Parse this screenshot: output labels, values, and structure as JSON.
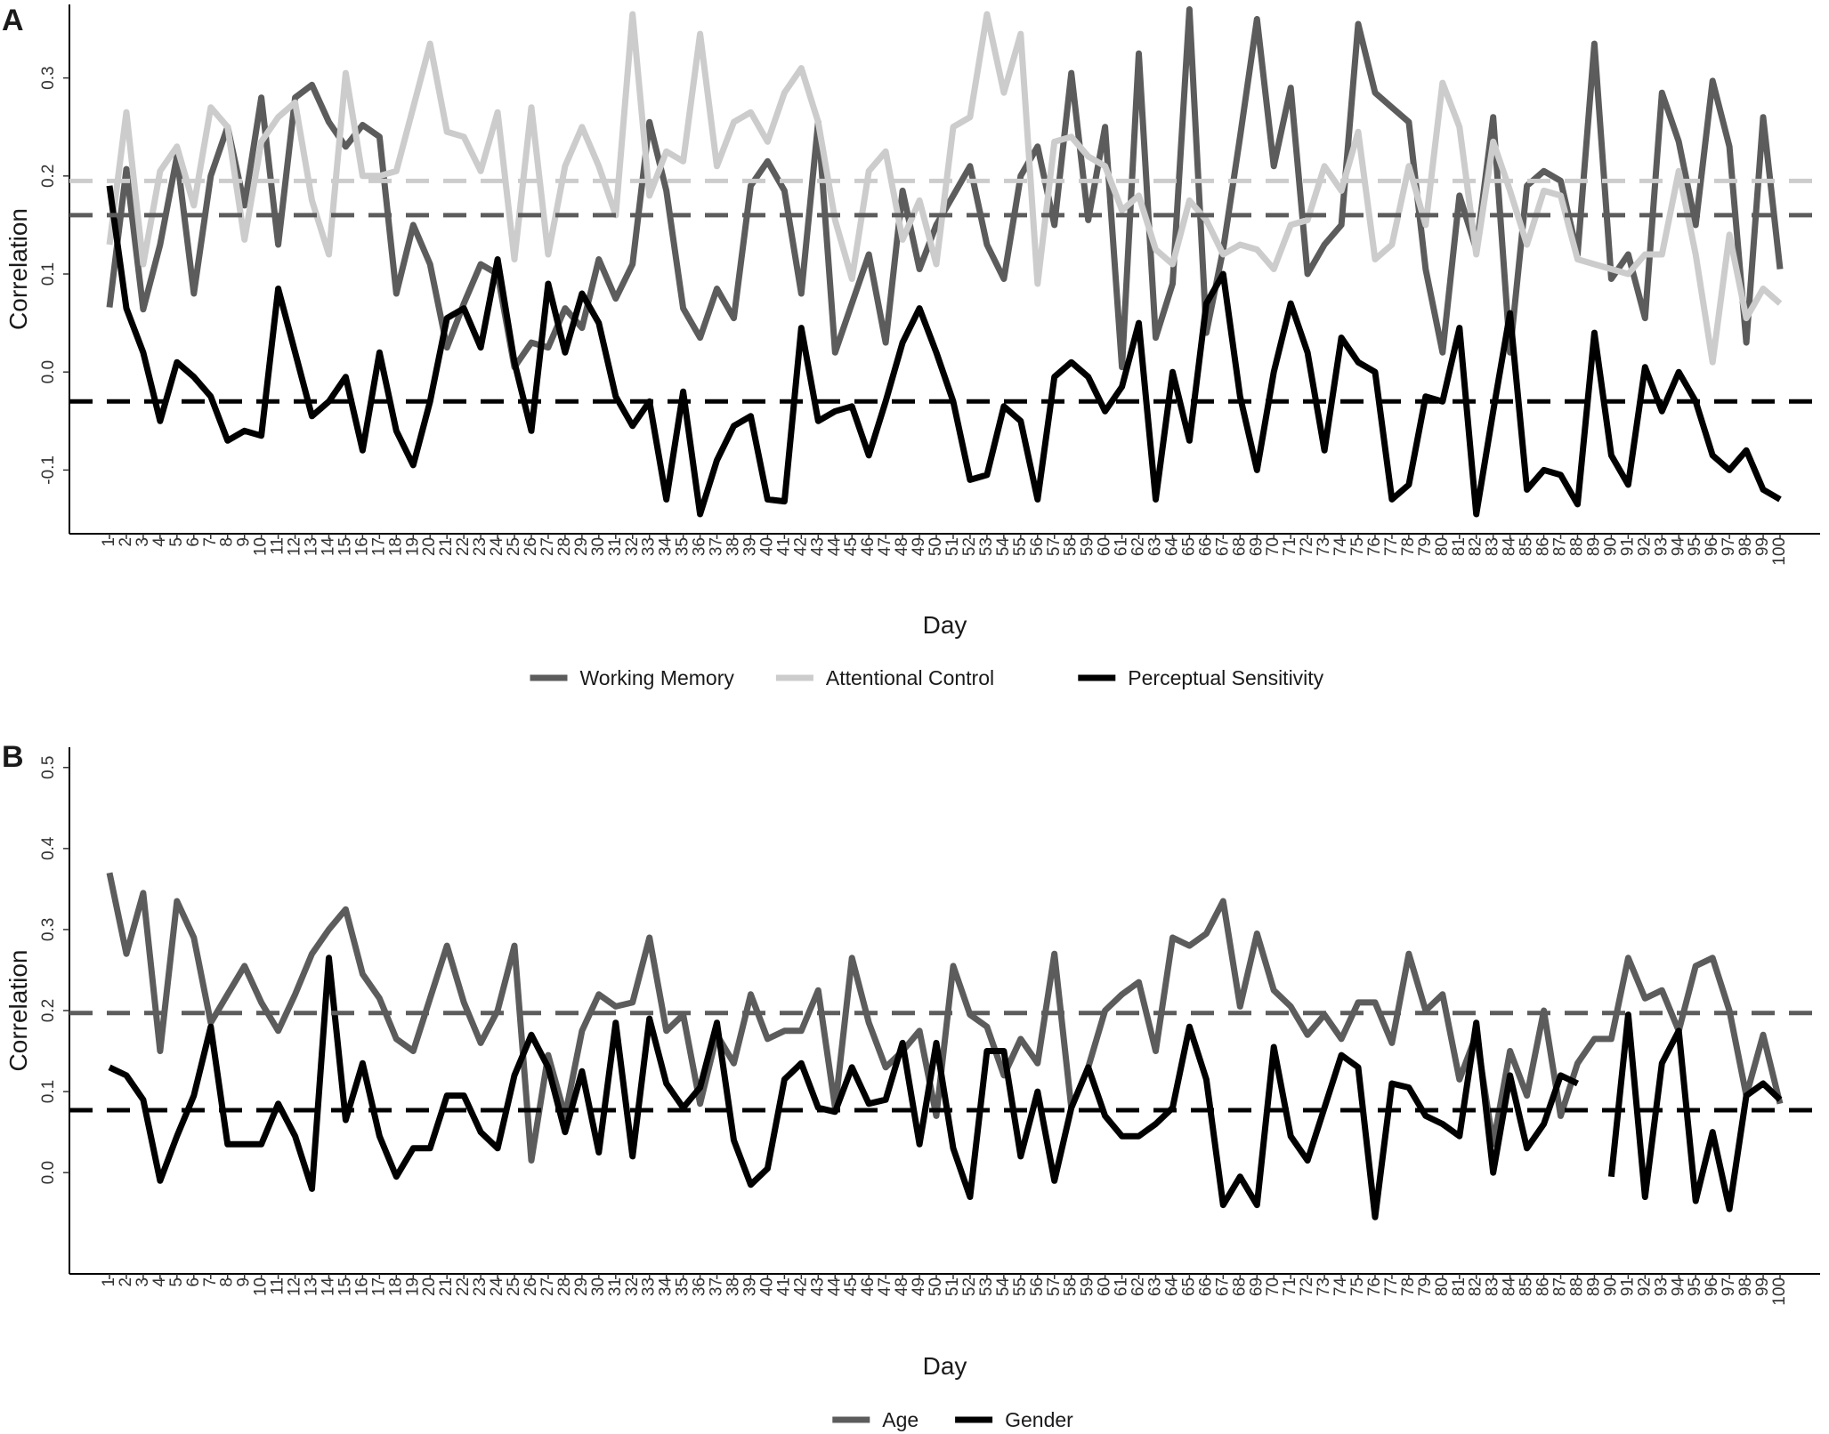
{
  "chart_data": [
    {
      "type": "line",
      "panel_label": "A",
      "xlabel": "Day",
      "ylabel": "Correlation",
      "x": [
        1,
        2,
        3,
        4,
        5,
        6,
        7,
        8,
        9,
        10,
        11,
        12,
        13,
        14,
        15,
        16,
        17,
        18,
        19,
        20,
        21,
        22,
        23,
        24,
        25,
        26,
        27,
        28,
        29,
        30,
        31,
        32,
        33,
        34,
        35,
        36,
        37,
        38,
        39,
        40,
        41,
        42,
        43,
        44,
        45,
        46,
        47,
        48,
        49,
        50,
        51,
        52,
        53,
        54,
        55,
        56,
        57,
        58,
        59,
        60,
        61,
        62,
        63,
        64,
        65,
        66,
        67,
        68,
        69,
        70,
        71,
        72,
        73,
        74,
        75,
        76,
        77,
        78,
        79,
        80,
        81,
        82,
        83,
        84,
        85,
        86,
        87,
        88,
        89,
        90,
        91,
        92,
        93,
        94,
        95,
        96,
        97,
        98,
        99,
        100
      ],
      "ylim": [
        -0.165,
        0.375
      ],
      "yticks": [
        -0.1,
        0.0,
        0.1,
        0.2,
        0.3
      ],
      "ytick_labels": [
        "-0.1",
        "0.0",
        "0.1",
        "0.2",
        "0.3"
      ],
      "series": [
        {
          "name": "Working Memory",
          "color": "#5c5c5c",
          "mean": 0.16,
          "values": [
            0.066,
            0.207,
            0.064,
            0.13,
            0.22,
            0.08,
            0.2,
            0.25,
            0.17,
            0.28,
            0.13,
            0.28,
            0.293,
            0.255,
            0.23,
            0.252,
            0.24,
            0.08,
            0.15,
            0.11,
            0.025,
            0.07,
            0.11,
            0.1,
            0.005,
            0.03,
            0.025,
            0.065,
            0.045,
            0.115,
            0.075,
            0.11,
            0.255,
            0.185,
            0.065,
            0.035,
            0.085,
            0.055,
            0.19,
            0.215,
            0.185,
            0.08,
            0.255,
            0.02,
            0.07,
            0.12,
            0.03,
            0.185,
            0.105,
            0.15,
            0.18,
            0.21,
            0.13,
            0.095,
            0.2,
            0.23,
            0.15,
            0.305,
            0.155,
            0.25,
            0.005,
            0.325,
            0.035,
            0.09,
            0.37,
            0.04,
            0.125,
            0.24,
            0.36,
            0.21,
            0.29,
            0.1,
            0.13,
            0.15,
            0.355,
            0.285,
            0.27,
            0.255,
            0.105,
            0.02,
            0.18,
            0.125,
            0.26,
            0.02,
            0.19,
            0.205,
            0.195,
            0.12,
            0.335,
            0.095,
            0.12,
            0.055,
            0.285,
            0.235,
            0.15,
            0.297,
            0.23,
            0.03,
            0.26,
            0.105
          ]
        },
        {
          "name": "Attentional Control",
          "color": "#cccccc",
          "mean": 0.195,
          "values": [
            0.13,
            0.265,
            0.11,
            0.205,
            0.23,
            0.17,
            0.27,
            0.25,
            0.135,
            0.235,
            0.26,
            0.275,
            0.175,
            0.12,
            0.305,
            0.2,
            0.2,
            0.205,
            0.27,
            0.335,
            0.245,
            0.24,
            0.205,
            0.265,
            0.115,
            0.27,
            0.12,
            0.21,
            0.25,
            0.21,
            0.16,
            0.365,
            0.18,
            0.225,
            0.215,
            0.345,
            0.21,
            0.255,
            0.265,
            0.235,
            0.285,
            0.31,
            0.255,
            0.155,
            0.095,
            0.205,
            0.225,
            0.135,
            0.175,
            0.11,
            0.25,
            0.26,
            0.365,
            0.285,
            0.345,
            0.09,
            0.235,
            0.24,
            0.22,
            0.21,
            0.165,
            0.18,
            0.125,
            0.11,
            0.175,
            0.155,
            0.12,
            0.13,
            0.125,
            0.105,
            0.15,
            0.155,
            0.21,
            0.185,
            0.245,
            0.115,
            0.13,
            0.21,
            0.15,
            0.295,
            0.25,
            0.12,
            0.235,
            0.185,
            0.13,
            0.185,
            0.18,
            0.115,
            0.11,
            0.105,
            0.1,
            0.12,
            0.12,
            0.205,
            0.12,
            0.01,
            0.14,
            0.055,
            0.085,
            0.07
          ]
        },
        {
          "name": "Perceptual Sensitivity",
          "color": "#000000",
          "mean": -0.03,
          "values": [
            0.19,
            0.065,
            0.02,
            -0.05,
            0.01,
            -0.005,
            -0.025,
            -0.07,
            -0.06,
            -0.065,
            0.085,
            0.02,
            -0.045,
            -0.03,
            -0.005,
            -0.08,
            0.02,
            -0.06,
            -0.095,
            -0.03,
            0.055,
            0.065,
            0.025,
            0.115,
            0.01,
            -0.06,
            0.09,
            0.02,
            0.08,
            0.05,
            -0.025,
            -0.055,
            -0.03,
            -0.13,
            -0.02,
            -0.145,
            -0.09,
            -0.055,
            -0.045,
            -0.13,
            -0.132,
            0.045,
            -0.05,
            -0.04,
            -0.035,
            -0.085,
            -0.03,
            0.03,
            0.065,
            0.02,
            -0.03,
            -0.11,
            -0.105,
            -0.035,
            -0.05,
            -0.13,
            -0.005,
            0.01,
            -0.005,
            -0.04,
            -0.015,
            0.05,
            -0.13,
            0.0,
            -0.07,
            0.07,
            0.1,
            -0.025,
            -0.1,
            0.0,
            0.07,
            0.02,
            -0.08,
            0.035,
            0.01,
            0.0,
            -0.13,
            -0.115,
            -0.025,
            -0.03,
            0.045,
            -0.145,
            -0.04,
            0.06,
            -0.12,
            -0.1,
            -0.105,
            -0.135,
            0.04,
            -0.085,
            -0.115,
            0.005,
            -0.04,
            0.0,
            -0.03,
            -0.085,
            -0.1,
            -0.08,
            -0.12,
            -0.13
          ]
        }
      ]
    },
    {
      "type": "line",
      "panel_label": "B",
      "xlabel": "Day",
      "ylabel": "Correlation",
      "x": [
        1,
        2,
        3,
        4,
        5,
        6,
        7,
        8,
        9,
        10,
        11,
        12,
        13,
        14,
        15,
        16,
        17,
        18,
        19,
        20,
        21,
        22,
        23,
        24,
        25,
        26,
        27,
        28,
        29,
        30,
        31,
        32,
        33,
        34,
        35,
        36,
        37,
        38,
        39,
        40,
        41,
        42,
        43,
        44,
        45,
        46,
        47,
        48,
        49,
        50,
        51,
        52,
        53,
        54,
        55,
        56,
        57,
        58,
        59,
        60,
        61,
        62,
        63,
        64,
        65,
        66,
        67,
        68,
        69,
        70,
        71,
        72,
        73,
        74,
        75,
        76,
        77,
        78,
        79,
        80,
        81,
        82,
        83,
        84,
        85,
        86,
        87,
        88,
        89,
        90,
        91,
        92,
        93,
        94,
        95,
        96,
        97,
        98,
        99,
        100
      ],
      "ylim": [
        -0.125,
        0.525
      ],
      "yticks": [
        0.0,
        0.1,
        0.2,
        0.3,
        0.4,
        0.5
      ],
      "ytick_labels": [
        "0.0",
        "0.1",
        "0.2",
        "0.3",
        "0.4",
        "0.5"
      ],
      "series": [
        {
          "name": "Age",
          "color": "#5c5c5c",
          "mean": 0.197,
          "values": [
            0.37,
            0.27,
            0.345,
            0.15,
            0.335,
            0.29,
            0.185,
            0.22,
            0.255,
            0.21,
            0.175,
            0.22,
            0.27,
            0.3,
            0.325,
            0.245,
            0.215,
            0.165,
            0.15,
            0.215,
            0.28,
            0.21,
            0.16,
            0.2,
            0.28,
            0.015,
            0.145,
            0.07,
            0.175,
            0.22,
            0.205,
            0.21,
            0.29,
            0.175,
            0.195,
            0.085,
            0.17,
            0.135,
            0.22,
            0.165,
            0.175,
            0.175,
            0.225,
            0.08,
            0.265,
            0.185,
            0.13,
            0.15,
            0.175,
            0.07,
            0.255,
            0.195,
            0.18,
            0.12,
            0.165,
            0.135,
            0.27,
            0.08,
            0.13,
            0.2,
            0.22,
            0.235,
            0.15,
            0.29,
            0.28,
            0.295,
            0.335,
            0.205,
            0.295,
            0.225,
            0.205,
            0.17,
            0.195,
            0.165,
            0.21,
            0.21,
            0.16,
            0.27,
            0.2,
            0.22,
            0.115,
            0.17,
            0.035,
            0.15,
            0.095,
            0.2,
            0.07,
            0.135,
            0.165,
            0.165,
            0.265,
            0.215,
            0.225,
            0.175,
            0.255,
            0.265,
            0.2,
            0.095,
            0.17,
            0.085
          ]
        },
        {
          "name": "Gender",
          "color": "#000000",
          "mean": 0.077,
          "values": [
            0.13,
            0.12,
            0.09,
            -0.01,
            0.045,
            0.095,
            0.18,
            0.035,
            0.035,
            0.035,
            0.085,
            0.045,
            -0.02,
            0.265,
            0.065,
            0.135,
            0.045,
            -0.005,
            0.03,
            0.03,
            0.095,
            0.095,
            0.05,
            0.03,
            0.12,
            0.17,
            0.13,
            0.05,
            0.125,
            0.025,
            0.185,
            0.02,
            0.19,
            0.11,
            0.08,
            0.105,
            0.185,
            0.04,
            -0.015,
            0.005,
            0.115,
            0.135,
            0.08,
            0.075,
            0.13,
            0.085,
            0.09,
            0.16,
            0.035,
            0.16,
            0.03,
            -0.03,
            0.15,
            0.15,
            0.02,
            0.1,
            -0.01,
            0.08,
            0.13,
            0.07,
            0.045,
            0.045,
            0.06,
            0.08,
            0.18,
            0.115,
            -0.04,
            -0.005,
            -0.04,
            0.155,
            0.045,
            0.015,
            0.08,
            0.145,
            0.13,
            -0.055,
            0.11,
            0.105,
            0.07,
            0.06,
            0.045,
            0.185,
            0.0,
            0.12,
            0.03,
            0.06,
            0.12,
            0.11,
            null,
            -0.005,
            0.195,
            -0.03,
            0.135,
            0.175,
            -0.035,
            0.05,
            -0.045,
            0.095,
            0.11,
            0.09
          ]
        }
      ]
    }
  ]
}
